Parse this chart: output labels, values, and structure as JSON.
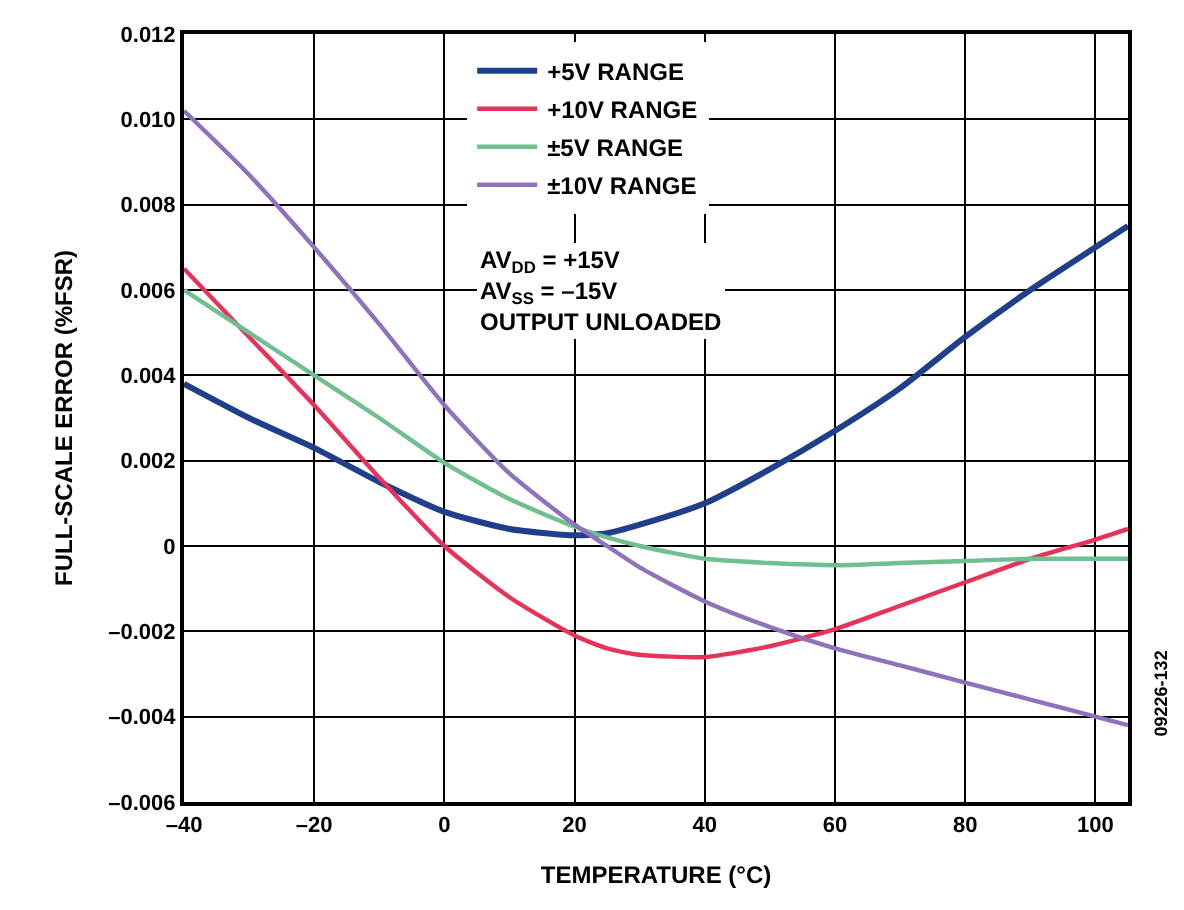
{
  "chart_data": {
    "type": "line",
    "xlabel": "TEMPERATURE (°C)",
    "ylabel": "FULL-SCALE ERROR (%FSR)",
    "x": [
      -40,
      -30,
      -20,
      -10,
      0,
      10,
      20,
      25,
      30,
      40,
      50,
      60,
      70,
      80,
      90,
      100,
      105
    ],
    "series": [
      {
        "name": "+5V RANGE",
        "color": "#1f3f8a",
        "values": [
          0.0038,
          0.003,
          0.0023,
          0.0015,
          0.0008,
          0.0004,
          0.00025,
          0.0003,
          0.0005,
          0.001,
          0.0018,
          0.0027,
          0.0037,
          0.0049,
          0.006,
          0.007,
          0.0075
        ]
      },
      {
        "name": "+10V RANGE",
        "color": "#e8325a",
        "values": [
          0.0065,
          0.0049,
          0.0033,
          0.0016,
          0.0,
          -0.0012,
          -0.0021,
          -0.0024,
          -0.00255,
          -0.0026,
          -0.00235,
          -0.00195,
          -0.0014,
          -0.00085,
          -0.0003,
          0.00015,
          0.0004
        ]
      },
      {
        "name": "±5V RANGE",
        "color": "#6fbf8f",
        "values": [
          0.006,
          0.005,
          0.004,
          0.003,
          0.00195,
          0.0011,
          0.00045,
          0.0002,
          0.0,
          -0.0003,
          -0.0004,
          -0.00045,
          -0.0004,
          -0.00035,
          -0.0003,
          -0.0003,
          -0.0003
        ]
      },
      {
        "name": "±10V RANGE",
        "color": "#8e72bb",
        "values": [
          0.0102,
          0.0087,
          0.007,
          0.0052,
          0.0033,
          0.0017,
          0.0005,
          0.0,
          -0.0005,
          -0.0013,
          -0.0019,
          -0.0024,
          -0.0028,
          -0.0032,
          -0.0036,
          -0.004,
          -0.0042
        ]
      }
    ],
    "xlim": [
      -40,
      105
    ],
    "xticks": [
      {
        "value": -40,
        "label": "–40"
      },
      {
        "value": -20,
        "label": "–20"
      },
      0,
      20,
      40,
      60,
      80,
      100
    ],
    "ylim": [
      -0.006,
      0.012
    ],
    "yticks": [
      {
        "value": -0.006,
        "label": "–0.006"
      },
      {
        "value": -0.004,
        "label": "–0.004"
      },
      {
        "value": -0.002,
        "label": "–0.002"
      },
      0,
      0.002,
      0.004,
      0.006,
      0.008,
      {
        "value": 0.01,
        "label": "0.010"
      },
      0.012
    ],
    "grid": true,
    "legend": "top",
    "line_style": "solid",
    "marker": "none",
    "annotations": [
      "AV$_{DD}$ = +15V\nAV$_{SS}$ = –15V\nOUTPUT UNLOADED",
      "09226-132"
    ]
  }
}
